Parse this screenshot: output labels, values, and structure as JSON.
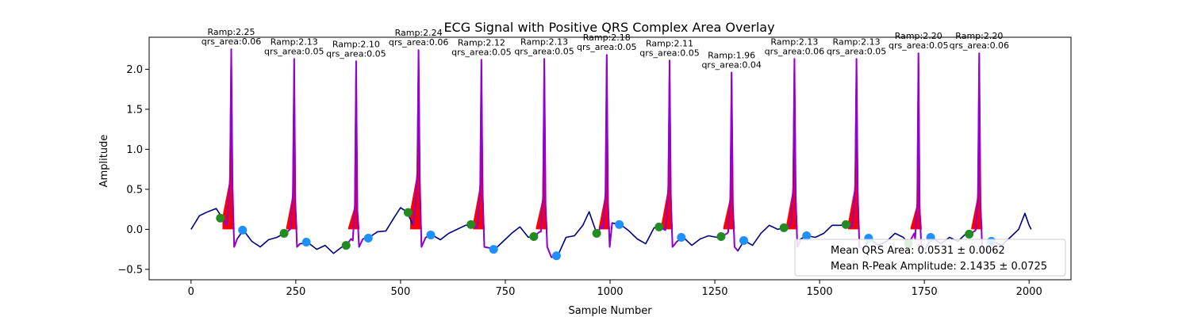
{
  "chart_data": {
    "type": "line",
    "title": "ECG Signal with Positive QRS Complex Area Overlay",
    "xlabel": "Sample Number",
    "ylabel": "Amplitude",
    "xlim": [
      -100,
      2100
    ],
    "ylim": [
      -0.63,
      2.4
    ],
    "x_ticks": [
      0,
      250,
      500,
      750,
      1000,
      1250,
      1500,
      1750,
      2000
    ],
    "y_ticks": [
      -0.5,
      0.0,
      0.5,
      1.0,
      1.5,
      2.0
    ],
    "x_tick_labels": [
      "0",
      "250",
      "500",
      "750",
      "1000",
      "1250",
      "1500",
      "1750",
      "2000"
    ],
    "y_tick_labels": [
      "−0.5",
      "0.0",
      "0.5",
      "1.0",
      "1.5",
      "2.0"
    ],
    "grid": false,
    "colors": {
      "signal": "#000080",
      "qrs_segment": "#9400D3",
      "area_fill": "#FF0000",
      "onset_marker": "#228B22",
      "offset_marker": "#1E90FF"
    },
    "beats": [
      {
        "r": 96,
        "amp": 2.25,
        "area": "0.06",
        "ramp_label": "Ramp:2.25",
        "area_label": "qrs_area:0.06",
        "onset": [
          70,
          0.14
        ],
        "offset": [
          123,
          -0.01
        ]
      },
      {
        "r": 246,
        "amp": 2.13,
        "area": "0.05",
        "ramp_label": "Ramp:2.13",
        "area_label": "qrs_area:0.05",
        "onset": [
          222,
          -0.05
        ],
        "offset": [
          275,
          -0.16
        ]
      },
      {
        "r": 394,
        "amp": 2.1,
        "area": "0.05",
        "ramp_label": "Ramp:2.10",
        "area_label": "qrs_area:0.05",
        "onset": [
          370,
          -0.2
        ],
        "offset": [
          423,
          -0.11
        ]
      },
      {
        "r": 543,
        "amp": 2.24,
        "area": "0.06",
        "ramp_label": "Ramp:2.24",
        "area_label": "qrs_area:0.06",
        "onset": [
          518,
          0.21
        ],
        "offset": [
          572,
          -0.07
        ]
      },
      {
        "r": 693,
        "amp": 2.12,
        "area": "0.05",
        "ramp_label": "Ramp:2.12",
        "area_label": "qrs_area:0.05",
        "onset": [
          668,
          0.06
        ],
        "offset": [
          722,
          -0.25
        ]
      },
      {
        "r": 843,
        "amp": 2.13,
        "area": "0.05",
        "ramp_label": "Ramp:2.13",
        "area_label": "qrs_area:0.05",
        "onset": [
          818,
          -0.09
        ],
        "offset": [
          872,
          -0.33
        ]
      },
      {
        "r": 992,
        "amp": 2.18,
        "area": "0.05",
        "ramp_label": "Ramp:2.18",
        "area_label": "qrs_area:0.05",
        "onset": [
          968,
          -0.05
        ],
        "offset": [
          1022,
          0.06
        ]
      },
      {
        "r": 1142,
        "amp": 2.11,
        "area": "0.05",
        "ramp_label": "Ramp:2.11",
        "area_label": "qrs_area:0.05",
        "onset": [
          1117,
          0.03
        ],
        "offset": [
          1170,
          -0.1
        ]
      },
      {
        "r": 1290,
        "amp": 1.96,
        "area": "0.04",
        "ramp_label": "Ramp:1.96",
        "area_label": "qrs_area:0.04",
        "onset": [
          1265,
          -0.09
        ],
        "offset": [
          1319,
          -0.14
        ]
      },
      {
        "r": 1440,
        "amp": 2.13,
        "area": "0.06",
        "ramp_label": "Ramp:2.13",
        "area_label": "qrs_area:0.06",
        "onset": [
          1415,
          0.02
        ],
        "offset": [
          1469,
          -0.08
        ]
      },
      {
        "r": 1588,
        "amp": 2.13,
        "area": "0.05",
        "ramp_label": "Ramp:2.13",
        "area_label": "qrs_area:0.05",
        "onset": [
          1563,
          0.06
        ],
        "offset": [
          1617,
          -0.11
        ]
      },
      {
        "r": 1736,
        "amp": 2.2,
        "area": "0.05",
        "ramp_label": "Ramp:2.20",
        "area_label": "qrs_area:0.05",
        "onset": [
          1712,
          -0.18
        ],
        "offset": [
          1765,
          -0.1
        ]
      },
      {
        "r": 1881,
        "amp": 2.2,
        "area": "0.06",
        "ramp_label": "Ramp:2.20",
        "area_label": "qrs_area:0.06",
        "onset": [
          1857,
          -0.06
        ],
        "offset": [
          1910,
          -0.15
        ]
      }
    ],
    "baseline_points": [
      [
        0,
        0.0
      ],
      [
        20,
        0.17
      ],
      [
        40,
        0.22
      ],
      [
        60,
        0.26
      ],
      [
        75,
        0.14
      ],
      [
        85,
        0.05
      ],
      [
        110,
        -0.12
      ],
      [
        125,
        -0.01
      ],
      [
        145,
        -0.15
      ],
      [
        165,
        -0.22
      ],
      [
        185,
        -0.13
      ],
      [
        205,
        -0.1
      ],
      [
        222,
        -0.05
      ],
      [
        232,
        -0.02
      ],
      [
        260,
        -0.18
      ],
      [
        280,
        -0.17
      ],
      [
        300,
        -0.25
      ],
      [
        320,
        -0.2
      ],
      [
        340,
        -0.3
      ],
      [
        360,
        -0.22
      ],
      [
        370,
        -0.2
      ],
      [
        382,
        -0.12
      ],
      [
        410,
        -0.12
      ],
      [
        425,
        -0.1
      ],
      [
        445,
        -0.03
      ],
      [
        465,
        -0.02
      ],
      [
        485,
        0.15
      ],
      [
        500,
        0.27
      ],
      [
        515,
        0.22
      ],
      [
        530,
        0.05
      ],
      [
        560,
        -0.1
      ],
      [
        575,
        -0.07
      ],
      [
        595,
        -0.13
      ],
      [
        615,
        -0.05
      ],
      [
        635,
        0.0
      ],
      [
        655,
        0.05
      ],
      [
        668,
        0.06
      ],
      [
        682,
        0.02
      ],
      [
        710,
        -0.23
      ],
      [
        725,
        -0.25
      ],
      [
        745,
        -0.15
      ],
      [
        765,
        -0.05
      ],
      [
        785,
        0.03
      ],
      [
        805,
        -0.1
      ],
      [
        818,
        -0.09
      ],
      [
        832,
        -0.03
      ],
      [
        860,
        -0.35
      ],
      [
        875,
        -0.33
      ],
      [
        895,
        -0.1
      ],
      [
        915,
        -0.08
      ],
      [
        935,
        0.05
      ],
      [
        950,
        0.22
      ],
      [
        968,
        -0.05
      ],
      [
        982,
        0.05
      ],
      [
        1005,
        0.08
      ],
      [
        1025,
        0.06
      ],
      [
        1045,
        -0.02
      ],
      [
        1065,
        -0.12
      ],
      [
        1085,
        -0.18
      ],
      [
        1105,
        0.02
      ],
      [
        1117,
        0.03
      ],
      [
        1132,
        -0.01
      ],
      [
        1160,
        -0.15
      ],
      [
        1175,
        -0.1
      ],
      [
        1195,
        -0.2
      ],
      [
        1215,
        -0.12
      ],
      [
        1235,
        -0.08
      ],
      [
        1255,
        -0.1
      ],
      [
        1265,
        -0.09
      ],
      [
        1280,
        -0.05
      ],
      [
        1305,
        -0.27
      ],
      [
        1320,
        -0.14
      ],
      [
        1340,
        -0.2
      ],
      [
        1360,
        -0.05
      ],
      [
        1380,
        0.05
      ],
      [
        1400,
        0.0
      ],
      [
        1415,
        0.02
      ],
      [
        1430,
        0.05
      ],
      [
        1455,
        -0.12
      ],
      [
        1470,
        -0.08
      ],
      [
        1490,
        -0.1
      ],
      [
        1510,
        -0.05
      ],
      [
        1530,
        0.05
      ],
      [
        1550,
        0.05
      ],
      [
        1563,
        0.06
      ],
      [
        1577,
        0.03
      ],
      [
        1605,
        -0.25
      ],
      [
        1620,
        -0.11
      ],
      [
        1640,
        -0.2
      ],
      [
        1660,
        -0.15
      ],
      [
        1680,
        -0.05
      ],
      [
        1700,
        -0.1
      ],
      [
        1712,
        -0.18
      ],
      [
        1726,
        -0.05
      ],
      [
        1752,
        -0.25
      ],
      [
        1768,
        -0.1
      ],
      [
        1790,
        -0.18
      ],
      [
        1810,
        -0.1
      ],
      [
        1830,
        -0.15
      ],
      [
        1850,
        -0.05
      ],
      [
        1857,
        -0.06
      ],
      [
        1871,
        -0.02
      ],
      [
        1898,
        -0.28
      ],
      [
        1912,
        -0.15
      ],
      [
        1935,
        -0.2
      ],
      [
        1955,
        -0.1
      ],
      [
        1975,
        0.0
      ],
      [
        1990,
        0.2
      ],
      [
        2000,
        0.05
      ],
      [
        2005,
        0.0
      ]
    ],
    "legend": {
      "placement": "lower-right",
      "entries": [
        "Mean QRS Area: 0.0531 ± 0.0062",
        "Mean R-Peak Amplitude: 2.1435 ± 0.0725"
      ]
    }
  }
}
